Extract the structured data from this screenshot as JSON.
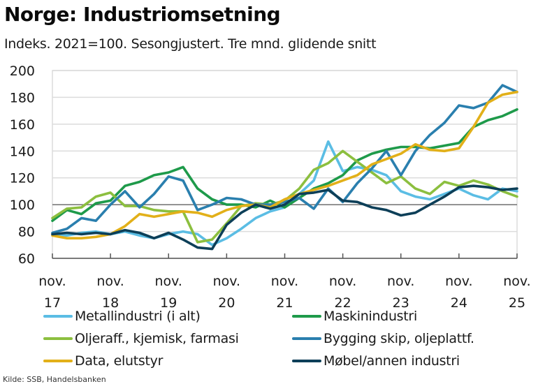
{
  "header": {
    "title": "Norge: Industriomsetning",
    "subtitle": "Indeks. 2021=100. Sesongjustert. Tre mnd. glidende snitt"
  },
  "source_text": "Kilde: SSB, Handelsbanken",
  "chart_data": {
    "type": "line",
    "title": "Norge: Industriomsetning",
    "subtitle": "Indeks. 2021=100. Sesongjustert. Tre mnd. glidende snitt",
    "xlabel": "",
    "ylabel": "",
    "ylim": [
      60,
      200
    ],
    "yticks": [
      60,
      80,
      100,
      120,
      140,
      160,
      180,
      200
    ],
    "reference_line": 100,
    "grid": true,
    "legend_position": "bottom",
    "x_unit": "years since nov. 2017",
    "xlim": [
      0,
      8
    ],
    "xtick_labels": [
      {
        "line1": "nov.",
        "line2": "17"
      },
      {
        "line1": "nov.",
        "line2": "18"
      },
      {
        "line1": "nov.",
        "line2": "19"
      },
      {
        "line1": "nov.",
        "line2": "20"
      },
      {
        "line1": "nov.",
        "line2": "21"
      },
      {
        "line1": "nov.",
        "line2": "22"
      },
      {
        "line1": "nov.",
        "line2": "23"
      },
      {
        "line1": "nov.",
        "line2": "24"
      },
      {
        "line1": "nov.",
        "line2": "25"
      }
    ],
    "x": [
      0,
      0.25,
      0.5,
      0.75,
      1,
      1.25,
      1.5,
      1.75,
      2,
      2.25,
      2.5,
      2.75,
      3,
      3.25,
      3.5,
      3.75,
      4,
      4.25,
      4.5,
      4.75,
      5,
      5.25,
      5.5,
      5.75,
      6,
      6.25,
      6.5,
      6.75,
      7,
      7.25,
      7.5,
      7.75,
      8
    ],
    "series": [
      {
        "name": "Metallindustri (i alt)",
        "color": "#5bbde4",
        "values": [
          78,
          77,
          79,
          80,
          78,
          80,
          77,
          75,
          78,
          80,
          78,
          70,
          75,
          82,
          90,
          95,
          98,
          108,
          118,
          147,
          125,
          128,
          126,
          122,
          110,
          106,
          104,
          108,
          112,
          107,
          104,
          112,
          110
        ]
      },
      {
        "name": "Maskinindustri",
        "color": "#1e9a4a",
        "values": [
          88,
          96,
          93,
          101,
          103,
          114,
          117,
          122,
          124,
          128,
          112,
          104,
          100,
          100,
          98,
          103,
          98,
          105,
          112,
          116,
          122,
          133,
          138,
          141,
          143,
          143,
          142,
          144,
          146,
          158,
          163,
          166,
          171
        ]
      },
      {
        "name": "Oljeraff., kjemisk, farmasi",
        "color": "#8cbf3f",
        "values": [
          90,
          97,
          98,
          106,
          109,
          99,
          99,
          96,
          95,
          95,
          72,
          74,
          86,
          99,
          101,
          100,
          103,
          112,
          126,
          131,
          140,
          132,
          124,
          116,
          121,
          112,
          108,
          117,
          114,
          118,
          115,
          110,
          106
        ]
      },
      {
        "name": "Bygging skip, oljeplattf.",
        "color": "#2a7fae",
        "values": [
          79,
          82,
          90,
          88,
          100,
          110,
          98,
          108,
          121,
          118,
          96,
          100,
          105,
          104,
          100,
          100,
          102,
          105,
          97,
          112,
          102,
          116,
          127,
          140,
          122,
          140,
          152,
          161,
          174,
          172,
          176,
          189,
          184
        ]
      },
      {
        "name": "Data, elutstyr",
        "color": "#e2b019",
        "values": [
          77,
          75,
          75,
          76,
          78,
          84,
          93,
          91,
          93,
          95,
          94,
          91,
          96,
          99,
          100,
          98,
          104,
          108,
          111,
          114,
          118,
          122,
          130,
          134,
          138,
          145,
          141,
          140,
          142,
          158,
          176,
          182,
          184
        ]
      },
      {
        "name": "Møbel/annen industri",
        "color": "#0d3f58",
        "values": [
          78,
          79,
          78,
          79,
          78,
          81,
          79,
          75,
          79,
          74,
          68,
          67,
          85,
          94,
          100,
          97,
          100,
          108,
          109,
          111,
          103,
          102,
          98,
          96,
          92,
          94,
          100,
          106,
          113,
          114,
          113,
          111,
          112
        ]
      }
    ]
  },
  "legend": [
    {
      "label": "Metallindustri (i alt)",
      "color": "#5bbde4"
    },
    {
      "label": "Maskinindustri",
      "color": "#1e9a4a"
    },
    {
      "label": "Oljeraff., kjemisk, farmasi",
      "color": "#8cbf3f"
    },
    {
      "label": "Bygging skip, oljeplattf.",
      "color": "#2a7fae"
    },
    {
      "label": "Data, elutstyr",
      "color": "#e2b019"
    },
    {
      "label": "Møbel/annen industri",
      "color": "#0d3f58"
    }
  ]
}
